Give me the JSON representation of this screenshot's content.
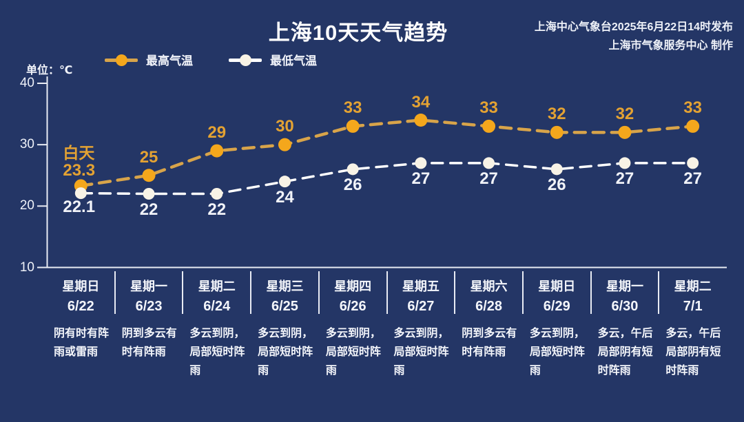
{
  "header": {
    "title": "上海10天天气趋势",
    "issued_line1": "上海中心气象台2025年6月22日14时发布",
    "issued_line2": "上海市气象服务中心 制作"
  },
  "unit_label": "单位：℃",
  "first_point_tag": "白天",
  "legend": {
    "high_label": "最高气温",
    "low_label": "最低气温"
  },
  "colors": {
    "background": "#243666",
    "axis": "#e9ecf4",
    "high_marker": "#f4a71c",
    "high_line": "#d8a44a",
    "high_label": "#e3a233",
    "low_marker": "#f8f3e6",
    "low_line": "#ffffff",
    "low_label": "#f1f3f8",
    "text_white": "#f4f6fb"
  },
  "chart_data": {
    "type": "line",
    "title": "上海10天天气趋势",
    "ylabel": "℃",
    "ylim": [
      10,
      40
    ],
    "yticks": [
      40,
      30,
      20,
      10
    ],
    "grid": false,
    "legend_position": "top-left",
    "categories": [
      {
        "weekday": "星期日",
        "date": "6/22",
        "weather": "阴有时有阵雨或雷雨"
      },
      {
        "weekday": "星期一",
        "date": "6/23",
        "weather": "阴到多云有时有阵雨"
      },
      {
        "weekday": "星期二",
        "date": "6/24",
        "weather": "多云到阴，局部短时阵雨"
      },
      {
        "weekday": "星期三",
        "date": "6/25",
        "weather": "多云到阴，局部短时阵雨"
      },
      {
        "weekday": "星期四",
        "date": "6/26",
        "weather": "多云到阴，局部短时阵雨"
      },
      {
        "weekday": "星期五",
        "date": "6/27",
        "weather": "多云到阴，局部短时阵雨"
      },
      {
        "weekday": "星期六",
        "date": "6/28",
        "weather": "阴到多云有时有阵雨"
      },
      {
        "weekday": "星期日",
        "date": "6/29",
        "weather": "多云到阴，局部短时阵雨"
      },
      {
        "weekday": "星期一",
        "date": "6/30",
        "weather": "多云，午后局部阴有短时阵雨"
      },
      {
        "weekday": "星期二",
        "date": "7/1",
        "weather": "多云，午后局部阴有短时阵雨"
      }
    ],
    "series": [
      {
        "name": "最高气温",
        "values": [
          23.3,
          25,
          29,
          30,
          33,
          34,
          33,
          32,
          32,
          33
        ],
        "marker_color": "#f4a71c",
        "line_color": "#d8a44a",
        "label_color": "#e3a233"
      },
      {
        "name": "最低气温",
        "values": [
          22.1,
          22,
          22,
          24,
          26,
          27,
          27,
          26,
          27,
          27
        ],
        "marker_color": "#f8f3e6",
        "line_color": "#ffffff",
        "label_color": "#f1f3f8"
      }
    ]
  }
}
